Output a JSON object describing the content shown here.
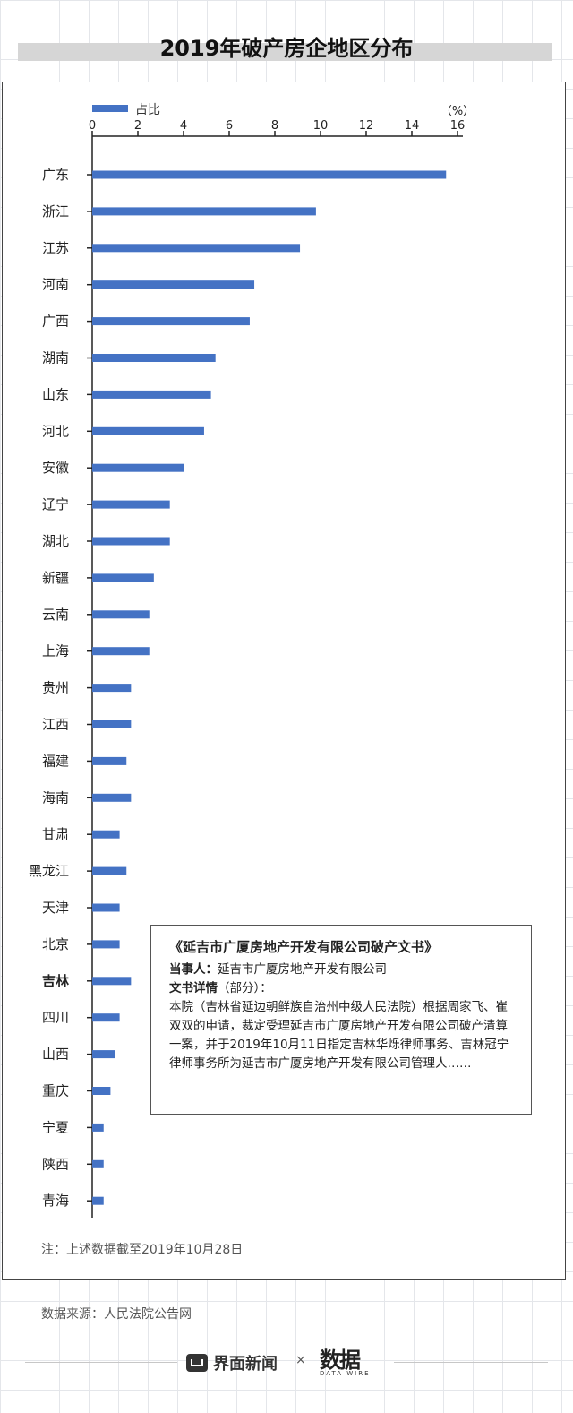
{
  "title": "2019年破产房企地区分布",
  "chart_data": {
    "type": "bar",
    "orientation": "horizontal",
    "legend": "占比",
    "unit_label": "（%）",
    "xlim": [
      0,
      16
    ],
    "ticks": [
      0,
      2,
      4,
      6,
      8,
      10,
      12,
      14,
      16
    ],
    "bar_color": "#4472c4",
    "highlight_category": "吉林",
    "categories": [
      "广东",
      "浙江",
      "江苏",
      "河南",
      "广西",
      "湖南",
      "山东",
      "河北",
      "安徽",
      "辽宁",
      "湖北",
      "新疆",
      "云南",
      "上海",
      "贵州",
      "江西",
      "福建",
      "海南",
      "甘肃",
      "黑龙江",
      "天津",
      "北京",
      "吉林",
      "四川",
      "山西",
      "重庆",
      "宁夏",
      "陕西",
      "青海"
    ],
    "values": [
      15.5,
      9.8,
      9.1,
      7.1,
      6.9,
      5.4,
      5.2,
      4.9,
      4.0,
      3.4,
      3.4,
      2.7,
      2.5,
      2.5,
      1.7,
      1.7,
      1.5,
      1.7,
      1.2,
      1.5,
      1.2,
      1.2,
      1.7,
      1.2,
      1.0,
      0.8,
      0.5,
      0.5,
      0.5
    ]
  },
  "callout": {
    "title": "《延吉市广厦房地产开发有限公司破产文书》",
    "party_label": "当事人：",
    "party_value": "延吉市广厦房地产开发有限公司",
    "detail_label": "文书详情",
    "detail_suffix": "（部分）：",
    "body": "本院（吉林省延边朝鲜族自治州中级人民法院）根据周家飞、崔双双的申请，裁定受理延吉市广厦房地产开发有限公司破产清算一案，并于2019年10月11日指定吉林华烁律师事务、吉林冠宁律师事务所为延吉市广厦房地产开发有限公司管理人……"
  },
  "note": "注：上述数据截至2019年10月28日",
  "source": "数据来源：人民法院公告网",
  "footer": {
    "brand": "界面新闻",
    "times": "×",
    "logo_glyph": "数据",
    "logo_sub": "DATA WIRE"
  }
}
